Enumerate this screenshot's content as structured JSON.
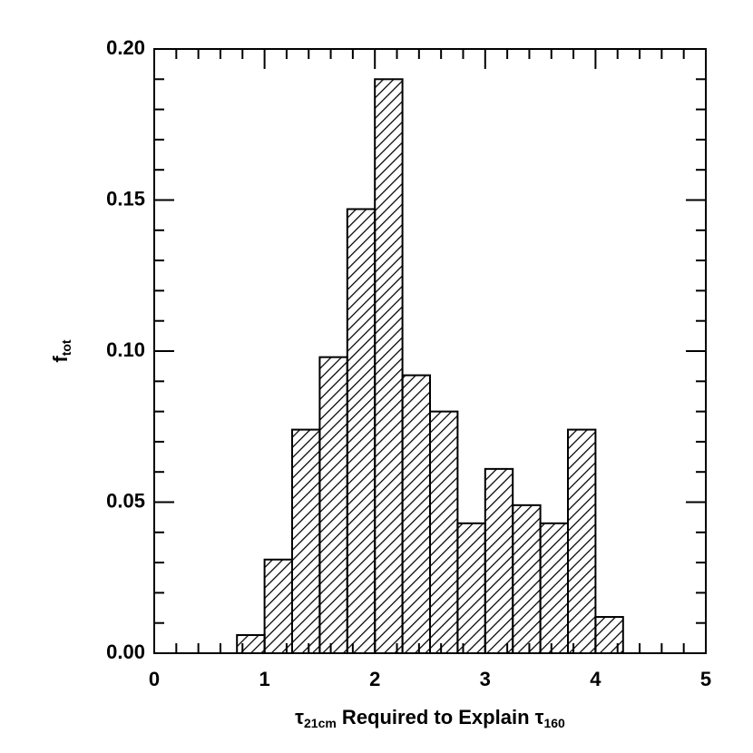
{
  "chart_data": {
    "type": "histogram",
    "bins": [
      0.75,
      1.0,
      1.25,
      1.5,
      1.75,
      2.0,
      2.25,
      2.5,
      2.75,
      3.0,
      3.25,
      3.5,
      3.75,
      4.0,
      4.25
    ],
    "values": [
      0.006,
      0.031,
      0.074,
      0.098,
      0.147,
      0.19,
      0.092,
      0.08,
      0.043,
      0.061,
      0.049,
      0.043,
      0.074,
      0.012
    ],
    "color": "#000000",
    "xlabel": [
      "τ",
      "21cm",
      " Required to Explain τ",
      "160"
    ],
    "ylabel": [
      "f",
      "tot"
    ],
    "xlim": [
      0,
      5
    ],
    "xticks": [
      0,
      1,
      2,
      3,
      4,
      5
    ],
    "xminorticks": [
      0.2,
      0.4,
      0.6,
      0.8,
      1.2,
      1.4,
      1.6,
      1.8,
      2.2,
      2.4,
      2.6,
      2.8,
      3.2,
      3.4,
      3.6,
      3.8,
      4.2,
      4.4,
      4.6,
      4.8
    ],
    "ylim": [
      0,
      0.2
    ],
    "yticks": [
      {
        "value": 0,
        "label": "0.00"
      },
      {
        "value": 0.05,
        "label": "0.05"
      },
      {
        "value": 0.1,
        "label": "0.10"
      },
      {
        "value": 0.15,
        "label": "0.15"
      },
      {
        "value": 0.2,
        "label": "0.20"
      }
    ],
    "yminorticks": [
      0.01,
      0.02,
      0.03,
      0.04,
      0.06,
      0.07,
      0.08,
      0.09,
      0.11,
      0.12,
      0.13,
      0.14,
      0.16,
      0.17,
      0.18,
      0.19
    ]
  }
}
